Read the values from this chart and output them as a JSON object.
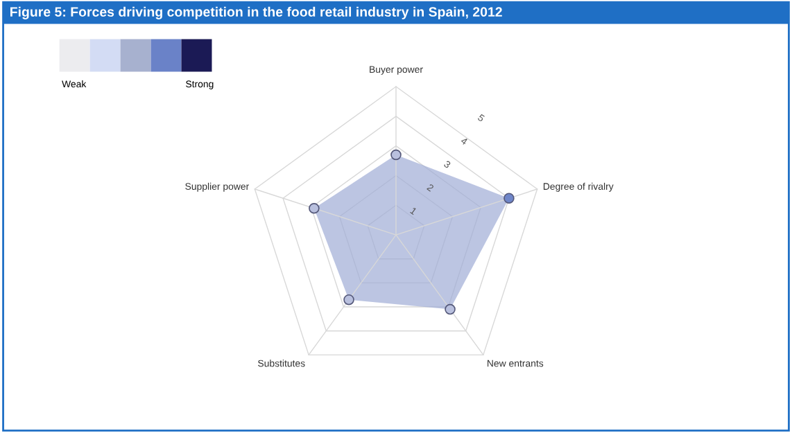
{
  "chart_data": {
    "type": "radar",
    "title": "Figure 5: Forces driving competition in the food retail industry in Spain, 2012",
    "categories": [
      "Buyer power",
      "Degree of rivalry",
      "New entrants",
      "Substitutes",
      "Supplier power"
    ],
    "series": [
      {
        "color": "#9fadd6",
        "values": [
          2.7,
          4.0,
          3.1,
          2.7,
          2.9
        ],
        "colors": [
          "#b9c0de",
          "#6f86c9",
          "#b9c0de",
          "#b9c0de",
          "#b9c0de"
        ]
      }
    ],
    "ylim": [
      0,
      5
    ],
    "yticks": [
      1,
      2,
      3,
      4,
      5
    ],
    "marker": "circle",
    "annotations": [
      "Weak",
      "Strong"
    ]
  }
}
